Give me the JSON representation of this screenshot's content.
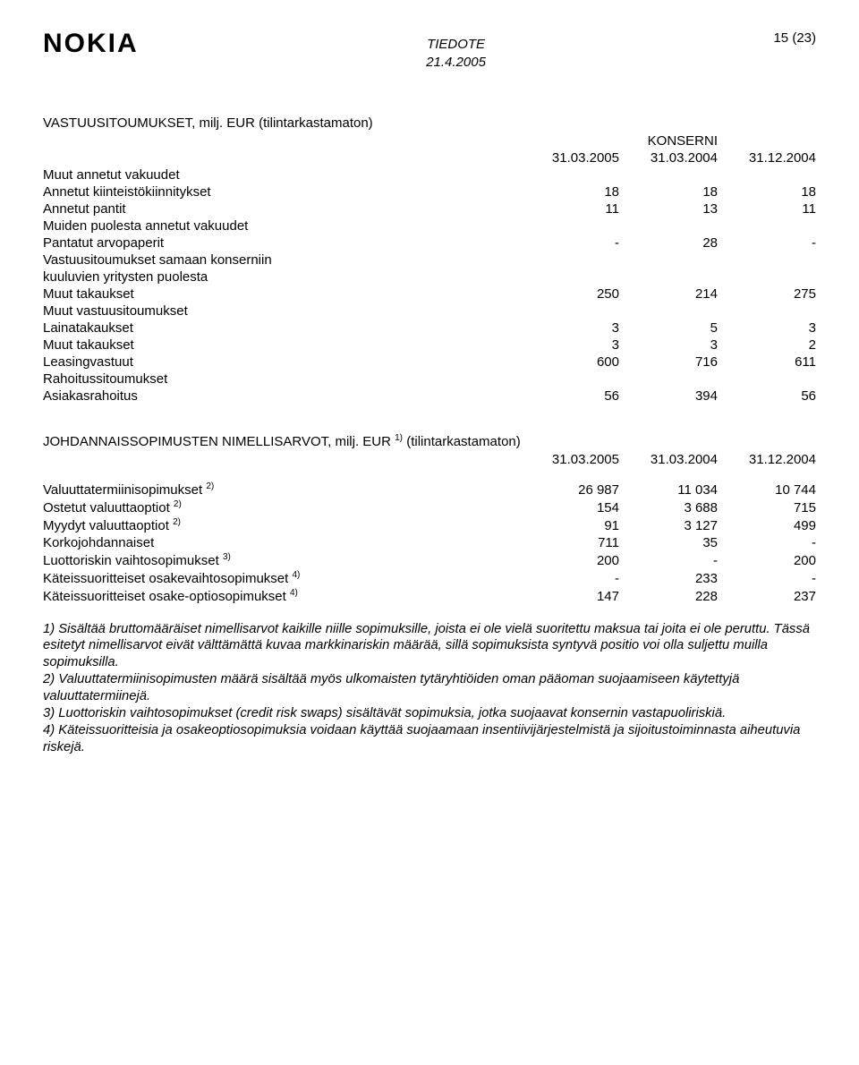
{
  "header": {
    "logo_text": "NOKIA",
    "tiedote": "TIEDOTE",
    "date": "21.4.2005",
    "page_indicator": "15 (23)"
  },
  "vastuu": {
    "title": "VASTUUSITOUMUKSET, milj. EUR (tilintarkastamaton)",
    "group_label": "KONSERNI",
    "cols": [
      "31.03.2005",
      "31.03.2004",
      "31.12.2004"
    ],
    "rows": [
      {
        "label": "Muut annetut vakuudet",
        "v": [
          "",
          "",
          ""
        ]
      },
      {
        "label": "Annetut kiinteistökiinnitykset",
        "v": [
          "18",
          "18",
          "18"
        ]
      },
      {
        "label": "Annetut pantit",
        "v": [
          "11",
          "13",
          "11"
        ]
      },
      {
        "label": "Muiden puolesta annetut vakuudet",
        "v": [
          "",
          "",
          ""
        ]
      },
      {
        "label": "Pantatut arvopaperit",
        "v": [
          "-",
          "28",
          "-"
        ]
      },
      {
        "label": "Vastuusitoumukset samaan konserniin",
        "v": [
          "",
          "",
          ""
        ]
      },
      {
        "label": "kuuluvien yritysten puolesta",
        "v": [
          "",
          "",
          ""
        ]
      },
      {
        "label": "Muut takaukset",
        "v": [
          "250",
          "214",
          "275"
        ]
      },
      {
        "label": "Muut vastuusitoumukset",
        "v": [
          "",
          "",
          ""
        ]
      },
      {
        "label": "Lainatakaukset",
        "v": [
          "3",
          "5",
          "3"
        ]
      },
      {
        "label": "Muut takaukset",
        "v": [
          "3",
          "3",
          "2"
        ]
      },
      {
        "label": "Leasingvastuut",
        "v": [
          "600",
          "716",
          "611"
        ]
      },
      {
        "label": "Rahoitussitoumukset",
        "v": [
          "",
          "",
          ""
        ]
      },
      {
        "label": "Asiakasrahoitus",
        "v": [
          "56",
          "394",
          "56"
        ]
      }
    ]
  },
  "johdannais": {
    "title_a": "JOHDANNAISSOPIMUSTEN NIMELLISARVOT, milj. EUR ",
    "title_sup": "1)",
    "title_b": " (tilintarkastamaton)",
    "cols": [
      "31.03.2005",
      "31.03.2004",
      "31.12.2004"
    ],
    "rows": [
      {
        "label": "Valuuttatermiinisopimukset ",
        "sup": "2)",
        "v": [
          "26 987",
          "11 034",
          "10 744"
        ]
      },
      {
        "label": "Ostetut valuuttaoptiot ",
        "sup": "2)",
        "v": [
          "154",
          "3 688",
          "715"
        ]
      },
      {
        "label": "Myydyt valuuttaoptiot ",
        "sup": "2)",
        "v": [
          "91",
          "3 127",
          "499"
        ]
      },
      {
        "label": "Korkojohdannaiset",
        "sup": "",
        "v": [
          "711",
          "35",
          "-"
        ]
      },
      {
        "label": "Luottoriskin vaihtosopimukset ",
        "sup": "3)",
        "v": [
          "200",
          "-",
          "200"
        ]
      },
      {
        "label": "Käteissuoritteiset osakevaihtosopimukset ",
        "sup": "4)",
        "v": [
          "-",
          "233",
          "-"
        ]
      },
      {
        "label": "Käteissuoritteiset osake-optiosopimukset ",
        "sup": "4)",
        "v": [
          "147",
          "228",
          "237"
        ]
      }
    ]
  },
  "footnotes": {
    "n1": "1) Sisältää bruttomääräiset nimellisarvot kaikille niille sopimuksille, joista ei ole vielä suoritettu maksua tai joita ei ole peruttu. Tässä esitetyt nimellisarvot eivät välttämättä kuvaa markkinariskin määrää, sillä sopimuksista syntyvä positio voi olla suljettu muilla sopimuksilla.",
    "n2": "2) Valuuttatermiinisopimusten määrä sisältää myös ulkomaisten tytäryhtiöiden oman pääoman suojaamiseen käytettyjä valuuttatermiinejä.",
    "n3": "3) Luottoriskin vaihtosopimukset (credit risk swaps) sisältävät sopimuksia, jotka suojaavat konsernin vastapuoliriskiä.",
    "n4": "4) Käteissuoritteisia ja osakeoptiosopimuksia voidaan käyttää suojaamaan insentiivijärjestelmistä ja sijoitustoiminnasta aiheutuvia riskejä."
  }
}
